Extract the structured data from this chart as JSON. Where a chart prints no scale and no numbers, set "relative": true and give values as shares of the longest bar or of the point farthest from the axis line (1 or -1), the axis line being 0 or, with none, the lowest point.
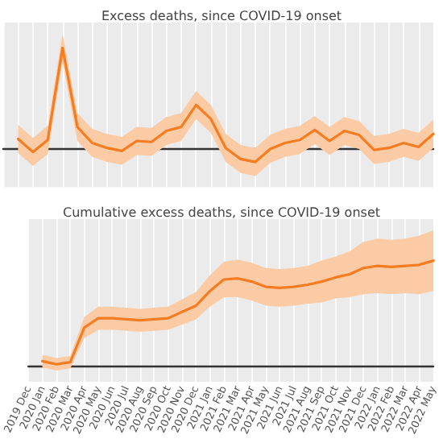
{
  "chart_data": [
    {
      "type": "line",
      "title": "Excess deaths, since COVID-19 onset",
      "relative": true,
      "grid": true,
      "marker": "none",
      "line_style": "solid",
      "categories": [
        null,
        null,
        null,
        null,
        null,
        null,
        null,
        null,
        null,
        null,
        null,
        null,
        null,
        null,
        null,
        null,
        null,
        null,
        null,
        null,
        null,
        null,
        null,
        null,
        null,
        null,
        null,
        null,
        null,
        null
      ],
      "series": [
        {
          "color": "#f57c20",
          "values": [
            null,
            0.09,
            -0.04,
            0.08,
            1,
            0.21,
            0.05,
            0,
            -0.03,
            0.07,
            0.06,
            0.17,
            0.21,
            0.43,
            0.29,
            0,
            -0.11,
            -0.14,
            -0.01,
            0.05,
            0.08,
            0.18,
            0.07,
            0.17,
            0.13,
            -0.02,
            0,
            0.05,
            0.01,
            0.14
          ],
          "lower": [
            null,
            -0.05,
            -0.18,
            -0.06,
            0.86,
            0.07,
            -0.09,
            -0.14,
            -0.17,
            -0.07,
            -0.08,
            0.03,
            0.07,
            0.29,
            0.15,
            -0.14,
            -0.25,
            -0.28,
            -0.15,
            -0.09,
            -0.06,
            0.04,
            -0.07,
            0.03,
            -0.01,
            -0.16,
            -0.14,
            -0.09,
            -0.13,
            0
          ],
          "upper": [
            null,
            0.23,
            0.1,
            0.22,
            1.14,
            0.35,
            0.19,
            0.14,
            0.11,
            0.21,
            0.2,
            0.31,
            0.35,
            0.57,
            0.43,
            0.14,
            0.03,
            0,
            0.13,
            0.19,
            0.22,
            0.32,
            0.21,
            0.31,
            0.27,
            0.12,
            0.14,
            0.19,
            0.15,
            0.28
          ]
        }
      ]
    },
    {
      "type": "line",
      "title": "Cumulative excess deaths, since COVID-19 onset",
      "relative": true,
      "grid": true,
      "marker": "none",
      "line_style": "solid",
      "categories": [
        "2019 Dec",
        "2020 Jan",
        "2020 Feb",
        "2020 Mar",
        "2020 Apr",
        "2020 May",
        "2020 Jun",
        "2020 Jul",
        "2020 Aug",
        "2020 Sep",
        "2020 Oct",
        "2020 Nov",
        "2020 Dec",
        "2021 Jan",
        "2021 Feb",
        "2021 Mar",
        "2021 Apr",
        "2021 May",
        "2021 Jun",
        "2021 Jul",
        "2021 Aug",
        "2021 Sep",
        "2021 Oct",
        "2021 Nov",
        "2021 Dec",
        "2022 Jan",
        "2022 Feb",
        "2022 Mar",
        "2022 Apr",
        "2022 May"
      ],
      "series": [
        {
          "color": "#f57c20",
          "values": [
            null,
            0.04,
            0.01,
            0.03,
            0.36,
            0.45,
            0.45,
            0.44,
            0.43,
            0.44,
            0.45,
            0.51,
            0.57,
            0.71,
            0.82,
            0.83,
            0.8,
            0.75,
            0.74,
            0.75,
            0.77,
            0.8,
            0.84,
            0.87,
            0.93,
            0.95,
            0.94,
            0.95,
            0.96,
            1
          ],
          "lower": [
            null,
            -0.02,
            -0.05,
            -0.03,
            0.26,
            0.34,
            0.34,
            0.33,
            0.32,
            0.33,
            0.34,
            0.39,
            0.44,
            0.56,
            0.65,
            0.65,
            0.62,
            0.57,
            0.56,
            0.57,
            0.59,
            0.6,
            0.64,
            0.65,
            0.68,
            0.69,
            0.68,
            0.69,
            0.68,
            0.71
          ],
          "upper": [
            null,
            0.1,
            0.07,
            0.09,
            0.46,
            0.56,
            0.56,
            0.55,
            0.54,
            0.55,
            0.56,
            0.63,
            0.7,
            0.86,
            0.99,
            1.01,
            0.98,
            0.93,
            0.92,
            0.93,
            0.95,
            1,
            1.04,
            1.09,
            1.18,
            1.21,
            1.2,
            1.21,
            1.24,
            1.29
          ]
        }
      ]
    }
  ]
}
